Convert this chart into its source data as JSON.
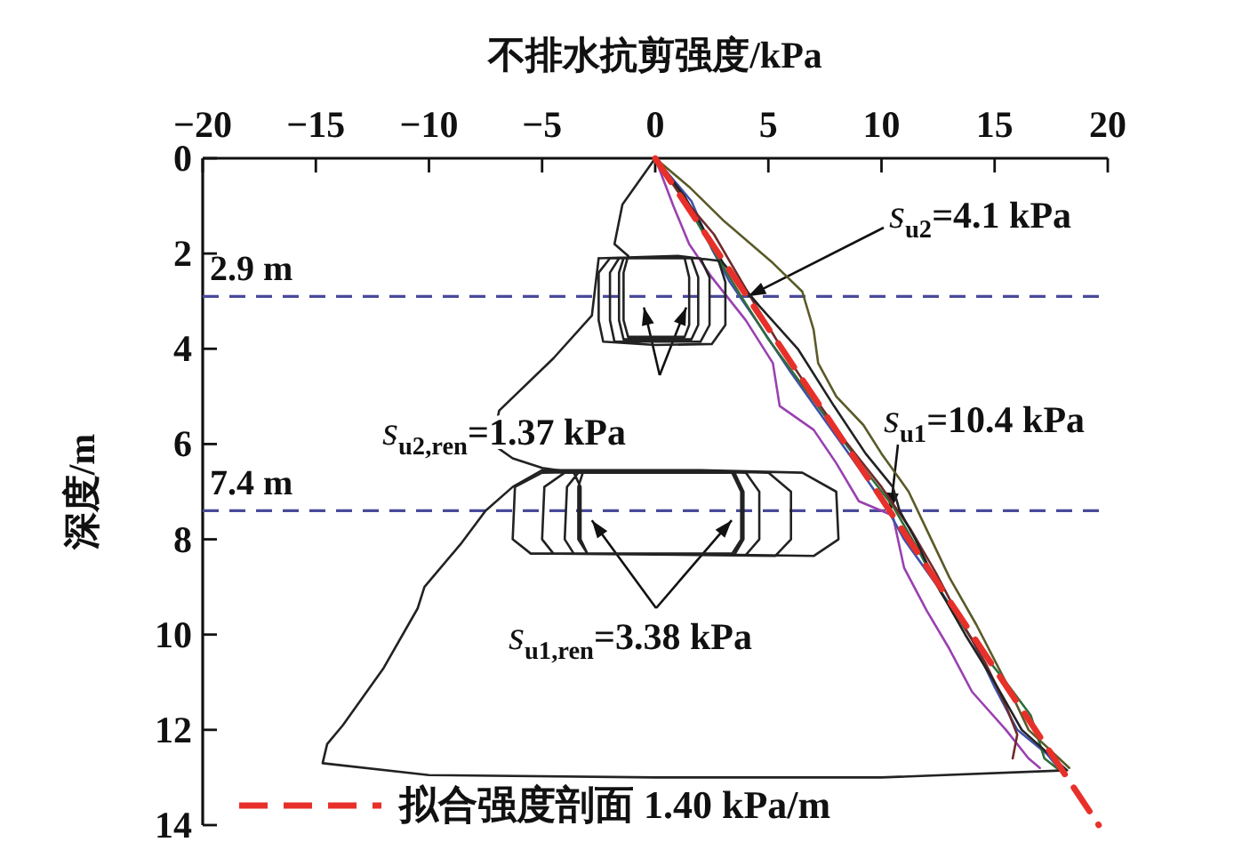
{
  "chart_data": {
    "type": "line",
    "xlabel": "不排水抗剪强度/kPa",
    "ylabel": "深度/m",
    "xlim": [
      -20,
      20
    ],
    "xticks": [
      -20,
      -15,
      -10,
      -5,
      0,
      5,
      10,
      15,
      20
    ],
    "ylim": [
      14,
      0
    ],
    "yticks": [
      0,
      2,
      4,
      6,
      8,
      10,
      12,
      14
    ],
    "legend": "bottom",
    "marker": "none",
    "series": [
      {
        "color": "#5a5a28",
        "x": [
          0,
          1.5,
          3,
          5.2,
          6.5,
          7,
          7.2,
          8,
          9.2,
          10,
          11.2,
          12,
          13,
          14.2,
          15.5,
          16.5,
          18.3
        ],
        "values": [
          0,
          0.6,
          1.3,
          2.2,
          2.8,
          3.6,
          4.3,
          5,
          5.6,
          6.2,
          7,
          7.8,
          8.8,
          9.8,
          11,
          12,
          12.8
        ]
      },
      {
        "color": "#9a40b0",
        "x": [
          0,
          0.8,
          1.5,
          2.5,
          4,
          5.2,
          5.5,
          7,
          8,
          9,
          10.5,
          11,
          12,
          13,
          14,
          15.5,
          16.5,
          17
        ],
        "values": [
          0,
          1,
          1.8,
          2.5,
          3.4,
          4.3,
          5.2,
          5.7,
          6.4,
          7.2,
          7.5,
          8.6,
          9.5,
          10.3,
          11.2,
          12,
          12.6,
          12.8
        ]
      },
      {
        "color": "#3f51a8",
        "x": [
          0,
          1.6,
          2.5,
          3.3,
          4.6,
          6,
          7.5,
          9,
          10.3,
          11,
          12.5,
          14,
          15,
          16,
          17.3,
          18
        ],
        "values": [
          0,
          0.9,
          1.9,
          2.6,
          3.5,
          4.5,
          5.5,
          6.5,
          7.4,
          8,
          9,
          10.1,
          11.1,
          12,
          12.5,
          12.9
        ]
      },
      {
        "color": "#2f6d3b",
        "x": [
          0,
          1.2,
          2.4,
          3.8,
          5,
          6.4,
          7.8,
          9.2,
          10.5,
          11.6,
          12.6,
          14,
          15.5,
          16.6,
          17.2,
          18
        ],
        "values": [
          0,
          0.8,
          1.8,
          2.9,
          3.8,
          4.7,
          5.6,
          6.5,
          7.3,
          8.2,
          9.1,
          10.1,
          11,
          11.7,
          12.6,
          12.9
        ]
      },
      {
        "color": "#6e2b2b",
        "x": [
          0,
          1,
          2.6,
          4.2,
          5.6,
          7,
          8.5,
          10,
          11.3,
          12.4,
          13.5,
          14.6,
          15.5,
          16,
          15.8
        ],
        "values": [
          0,
          0.7,
          1.6,
          2.9,
          4,
          5,
          6,
          6.9,
          7.8,
          8.7,
          9.7,
          10.6,
          11.5,
          12.1,
          12.6
        ]
      },
      {
        "color": "#222222",
        "x": [
          0,
          1.3,
          3,
          4.6,
          6.3,
          7.9,
          9.3,
          10.5,
          10.8,
          11.5,
          12.5,
          13.7,
          15,
          16.2,
          18.2,
          10,
          0,
          -10,
          -14.7,
          -14.5,
          -13.8,
          -12,
          -10.5,
          -10.2,
          -8.6,
          -7.5,
          -6.3,
          -5
        ],
        "values": [
          0,
          0.8,
          2.2,
          3.1,
          4,
          5.2,
          6.2,
          6.9,
          7.4,
          8,
          9,
          10,
          11,
          12,
          12.85,
          13,
          13,
          12.95,
          12.7,
          12.3,
          11.9,
          10.7,
          9.45,
          9,
          8.1,
          7.4,
          6.9,
          6.55
        ]
      },
      {
        "color": "#222222",
        "x": [
          -5,
          2,
          6.5,
          8,
          8.1,
          7,
          0,
          -5.5,
          -6.3,
          -6.2,
          -5,
          1,
          5,
          6,
          6,
          5.3,
          0,
          -4.5,
          -5,
          -4.9,
          -4,
          0,
          4,
          4.6,
          4.6,
          4,
          0,
          -3.6,
          -4,
          -3.9,
          -3.4,
          3.5,
          3.9,
          3.9,
          3.5,
          -3,
          -3.4,
          -3.4,
          -3.2,
          3.4,
          3.8,
          3.8,
          3.4,
          -3,
          -3.3,
          -3.3,
          -3.6
        ],
        "values": [
          6.55,
          6.55,
          6.6,
          7,
          8,
          8.35,
          8.3,
          8.3,
          8,
          6.9,
          6.6,
          6.55,
          6.6,
          7,
          8,
          8.35,
          8.32,
          8.3,
          8,
          6.9,
          6.6,
          6.55,
          6.6,
          7,
          8,
          8.33,
          8.32,
          8.3,
          8,
          6.9,
          6.6,
          6.6,
          7,
          8,
          8.32,
          8.3,
          8,
          6.9,
          6.6,
          6.6,
          7,
          8,
          8.3,
          8.3,
          8,
          6.9,
          6.6
        ]
      },
      {
        "color": "#222222",
        "x": [
          -3.6,
          -5,
          -6.3,
          -7.2,
          -6.9,
          -4.5,
          -2.8,
          -2.5
        ],
        "values": [
          6.6,
          6.5,
          6.3,
          6,
          5.3,
          4.2,
          3.3,
          2.1
        ]
      },
      {
        "color": "#222222",
        "x": [
          -2.5,
          1,
          2.8,
          3.1,
          3.1,
          2.5,
          0,
          -2.3,
          -2.5,
          -2.5,
          -2,
          2,
          2.4,
          2.4,
          2,
          -1.8,
          -2,
          -2,
          -1.6,
          1.6,
          1.9,
          1.9,
          1.6,
          -1.4,
          -1.6,
          -1.6,
          -1.4,
          1.3,
          1.5,
          1.5,
          1.3,
          -1.2,
          -1.4,
          -1.4,
          -1.2
        ],
        "values": [
          2.1,
          2.05,
          2.15,
          2.6,
          3.5,
          3.9,
          3.92,
          3.85,
          3.4,
          2.4,
          2.1,
          2.1,
          2.5,
          3.5,
          3.85,
          3.85,
          3.4,
          2.4,
          2.1,
          2.1,
          2.5,
          3.5,
          3.8,
          3.8,
          3.4,
          2.4,
          2.1,
          2.1,
          2.5,
          3.5,
          3.75,
          3.75,
          3.4,
          2.4,
          2.05
        ]
      },
      {
        "color": "#222222",
        "x": [
          -1.2,
          -1.8,
          -1.45,
          -0.6,
          0
        ],
        "values": [
          2.05,
          1.8,
          0.97,
          0.4,
          0
        ]
      },
      {
        "name": "拟合强度剖面 1.40 kPa/m",
        "color": "#e8302a",
        "line_style": "dashed",
        "x": [
          0,
          19.6
        ],
        "values": [
          0,
          14
        ]
      }
    ],
    "ref_lines": [
      {
        "axis": "y",
        "value": 2.9,
        "label": "2.9 m",
        "color": "#4a4a9a",
        "line_style": "dashed"
      },
      {
        "axis": "y",
        "value": 7.4,
        "label": "7.4 m",
        "color": "#4a4a9a",
        "line_style": "dashed"
      }
    ],
    "annotations": [
      {
        "text": "*s*$_{u2}$=4.1 kPa",
        "x": 4.1,
        "y": 2.9
      },
      {
        "text": "*s*$_{u1}$=10.4 kPa",
        "x": 10.4,
        "y": 7.4
      },
      {
        "text": "*s*$_{u2,ren}$=1.37 kPa",
        "x": 1.37,
        "y": 3.13
      },
      {
        "text": "*s*$_{u1,ren}$=3.38 kPa",
        "x": 3.38,
        "y": 7.6
      }
    ]
  }
}
